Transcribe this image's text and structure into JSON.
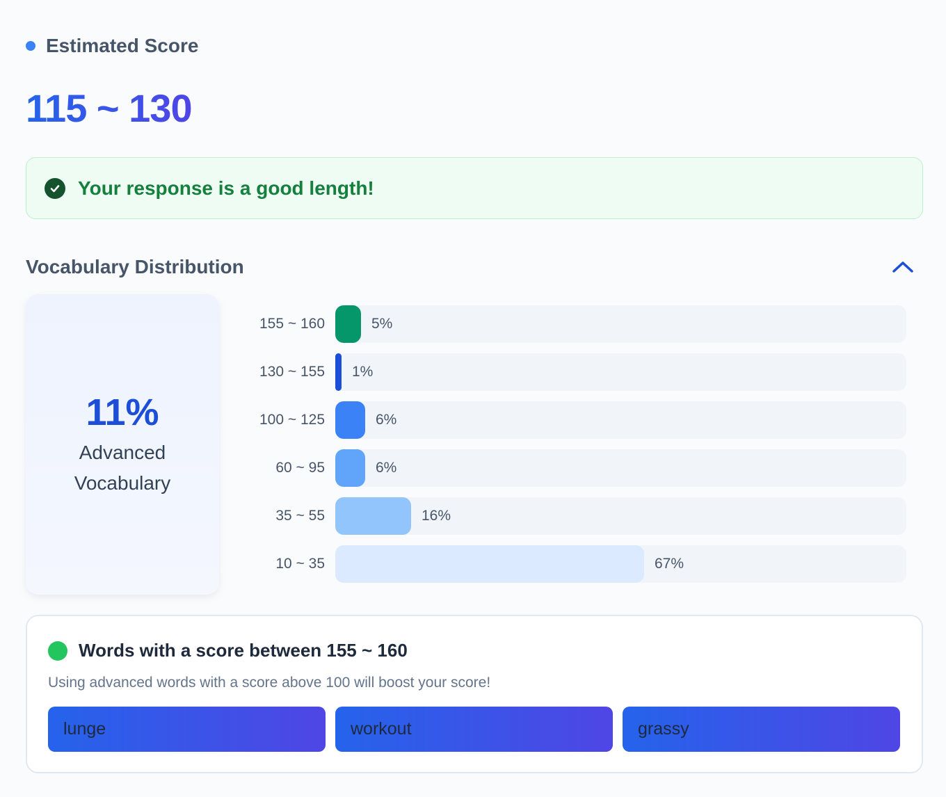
{
  "estimated": {
    "label": "Estimated Score",
    "range": "115 ~ 130"
  },
  "length_feedback": {
    "text": "Your response is a good length!",
    "icon": "check-circle-icon"
  },
  "vocab": {
    "title": "Vocabulary Distribution",
    "toggle_icon": "chevron-up-icon",
    "advanced_pct": "11%",
    "advanced_label": "Advanced Vocabulary",
    "rows": [
      {
        "range": "155 ~ 160",
        "pct": "5%",
        "value": 5,
        "color": "#059669"
      },
      {
        "range": "130 ~ 155",
        "pct": "1%",
        "value": 1,
        "color": "#1d4ed8"
      },
      {
        "range": "100 ~ 125",
        "pct": "6%",
        "value": 6,
        "color": "#3b82f6"
      },
      {
        "range": "60 ~ 95",
        "pct": "6%",
        "value": 6,
        "color": "#60a5fa"
      },
      {
        "range": "35 ~ 55",
        "pct": "16%",
        "value": 16,
        "color": "#93c5fd"
      },
      {
        "range": "10 ~ 35",
        "pct": "67%",
        "value": 67,
        "color": "#dbeafe"
      }
    ]
  },
  "words": {
    "title": "Words with a score between 155 ~ 160",
    "description": "Using advanced words with a score above 100 will boost your score!",
    "items": [
      "lunge",
      "workout",
      "grassy"
    ]
  }
}
